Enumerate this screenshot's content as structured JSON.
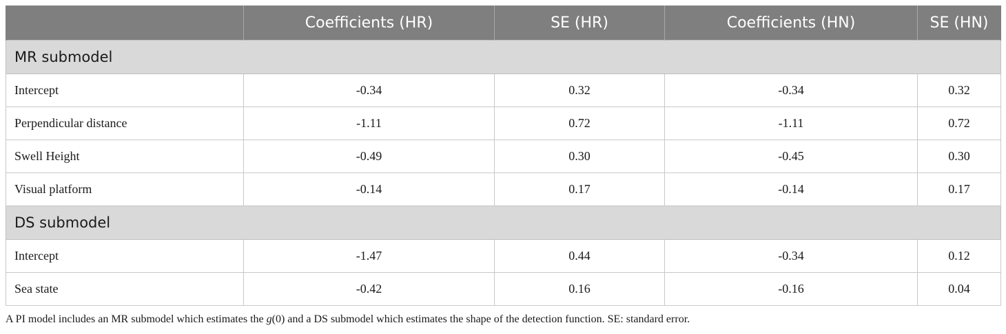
{
  "table": {
    "headers": [
      "",
      "Coefficients (HR)",
      "SE (HR)",
      "Coefficients (HN)",
      "SE (HN)"
    ],
    "sections": [
      {
        "title": "MR submodel",
        "rows": [
          {
            "label": "Intercept",
            "coef_hr": "-0.34",
            "se_hr": "0.32",
            "coef_hn": "-0.34",
            "se_hn": "0.32"
          },
          {
            "label": "Perpendicular distance",
            "coef_hr": "-1.11",
            "se_hr": "0.72",
            "coef_hn": "-1.11",
            "se_hn": "0.72"
          },
          {
            "label": "Swell Height",
            "coef_hr": "-0.49",
            "se_hr": "0.30",
            "coef_hn": "-0.45",
            "se_hn": "0.30"
          },
          {
            "label": "Visual platform",
            "coef_hr": "-0.14",
            "se_hr": "0.17",
            "coef_hn": "-0.14",
            "se_hn": "0.17"
          }
        ]
      },
      {
        "title": "DS submodel",
        "rows": [
          {
            "label": "Intercept",
            "coef_hr": "-1.47",
            "se_hr": "0.44",
            "coef_hn": "-0.34",
            "se_hn": "0.12"
          },
          {
            "label": "Sea state",
            "coef_hr": "-0.42",
            "se_hr": "0.16",
            "coef_hn": "-0.16",
            "se_hn": "0.04"
          }
        ]
      }
    ]
  },
  "footnote": {
    "before": "A PI model includes an MR submodel which estimates the ",
    "math": "g",
    "after": "(0) and a DS submodel which estimates the shape of the detection function. SE: standard error."
  },
  "colors": {
    "header_bg": "#7f7f7f",
    "section_bg": "#d9d9d9"
  }
}
